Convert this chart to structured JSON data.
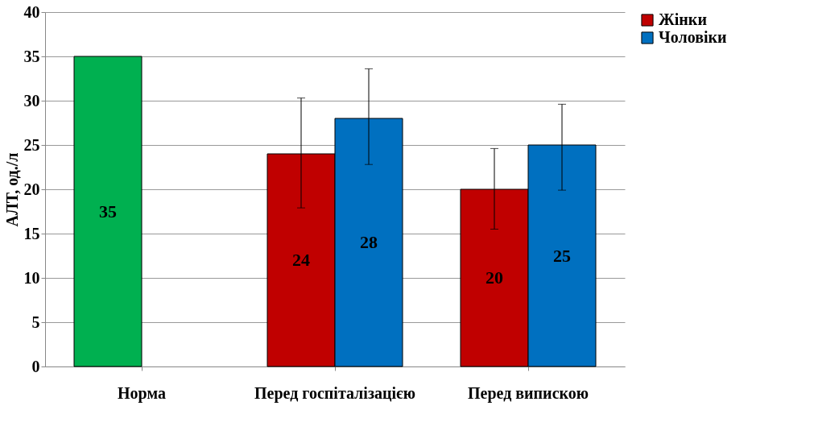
{
  "chart_data": {
    "type": "bar",
    "ylabel": "АЛТ, од./л",
    "categories": [
      "Норма",
      "Перед госпіталізацією",
      "Перед випискою"
    ],
    "series": [
      {
        "color": "#00b050",
        "values": [
          35,
          null,
          null
        ]
      },
      {
        "name": "Жінки",
        "color": "#c00000",
        "values": [
          null,
          24,
          20
        ],
        "errors": [
          null,
          [
            17.9,
            30.3
          ],
          [
            15.5,
            24.6
          ]
        ]
      },
      {
        "name": "Чоловіки",
        "color": "#0070c0",
        "values": [
          null,
          28,
          25
        ],
        "errors": [
          null,
          [
            22.8,
            33.6
          ],
          [
            19.9,
            29.6
          ]
        ]
      }
    ],
    "ylim": [
      0,
      40
    ],
    "yticks": [
      0,
      5,
      10,
      15,
      20,
      25,
      30,
      35,
      40
    ],
    "grid": "y",
    "legend": "right",
    "data_labels": true
  }
}
